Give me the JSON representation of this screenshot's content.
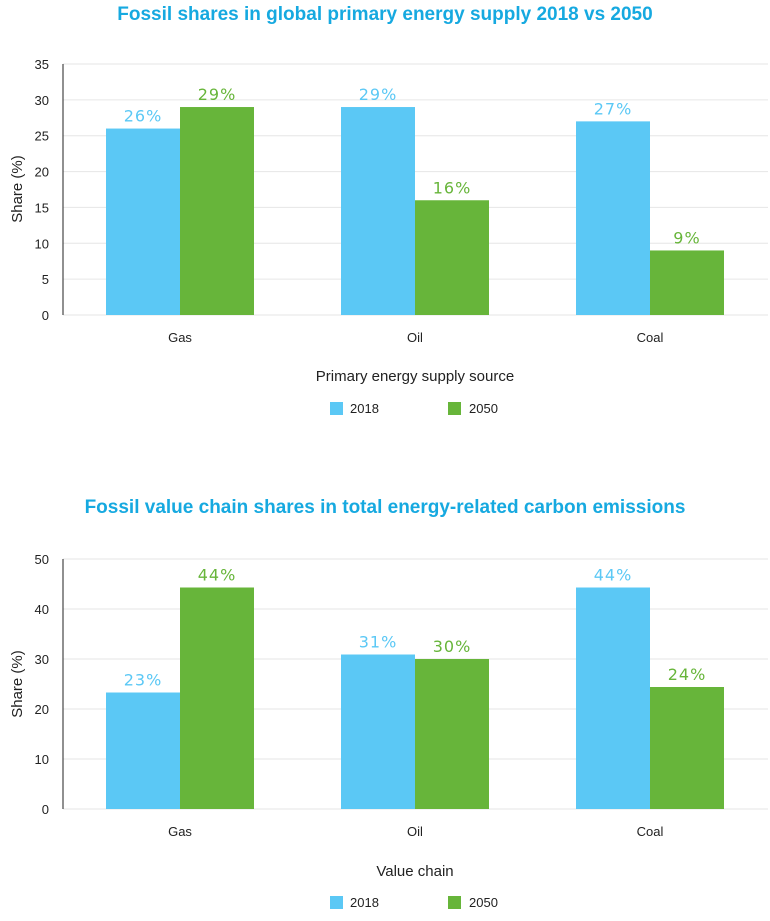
{
  "colors": {
    "s2018": "#5bc8f5",
    "s2050": "#67b53a",
    "title": "#16a9e0"
  },
  "chart_data": [
    {
      "type": "bar",
      "title": "Fossil shares in global primary energy supply 2018 vs 2050",
      "xlabel": "Primary energy supply source",
      "ylabel": "Share (%)",
      "ylim": [
        0,
        35
      ],
      "yticks": [
        "0",
        "5",
        "10",
        "15",
        "20",
        "25",
        "30",
        "35"
      ],
      "categories": [
        "Gas",
        "Oil",
        "Coal"
      ],
      "series": [
        {
          "name": "2018",
          "values": [
            26,
            29,
            27
          ],
          "labels": [
            "26%",
            "29%",
            "27%"
          ]
        },
        {
          "name": "2050",
          "values": [
            29,
            16,
            9
          ],
          "labels": [
            "29%",
            "16%",
            "9%"
          ]
        }
      ],
      "grid": true,
      "legend": "bottom-center"
    },
    {
      "type": "bar",
      "title": "Fossil value chain shares in total energy-related carbon emissions",
      "xlabel": "Value chain",
      "ylabel": "Share (%)",
      "ylim": [
        0,
        50
      ],
      "yticks": [
        "0",
        "10",
        "20",
        "30",
        "40",
        "50"
      ],
      "categories": [
        "Gas",
        "Oil",
        "Coal"
      ],
      "series": [
        {
          "name": "2018",
          "values": [
            23.3,
            30.9,
            44.3
          ],
          "labels": [
            "23%",
            "31%",
            "44%"
          ]
        },
        {
          "name": "2050",
          "values": [
            44.3,
            30,
            24.4
          ],
          "labels": [
            "44%",
            "30%",
            "24%"
          ]
        }
      ],
      "grid": true,
      "legend": "bottom-center"
    }
  ]
}
